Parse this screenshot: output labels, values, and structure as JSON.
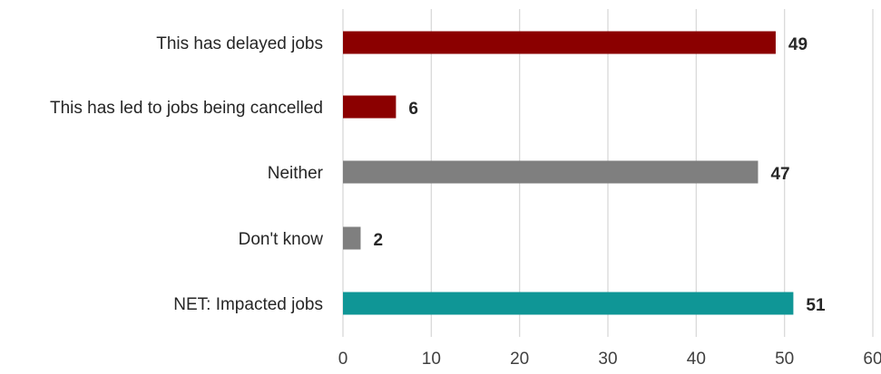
{
  "chart_data": {
    "type": "bar",
    "orientation": "horizontal",
    "title": "",
    "xlabel": "",
    "ylabel": "",
    "categories": [
      "This has delayed jobs",
      "This has led to jobs being cancelled",
      "Neither",
      "Don't know",
      "NET: Impacted jobs"
    ],
    "values": [
      49,
      6,
      47,
      2,
      51
    ],
    "data_labels": [
      "49",
      "6",
      "47",
      "2",
      "51"
    ],
    "bar_colors": [
      "#8b0000",
      "#8b0000",
      "#7f7f7f",
      "#7f7f7f",
      "#0f9696"
    ],
    "xlim": [
      0,
      60
    ],
    "x_ticks": [
      0,
      10,
      20,
      30,
      40,
      50,
      60
    ],
    "x_tick_labels": [
      "0",
      "10",
      "20",
      "30",
      "40",
      "50",
      "60"
    ],
    "grid": "vertical",
    "legend": "none"
  }
}
